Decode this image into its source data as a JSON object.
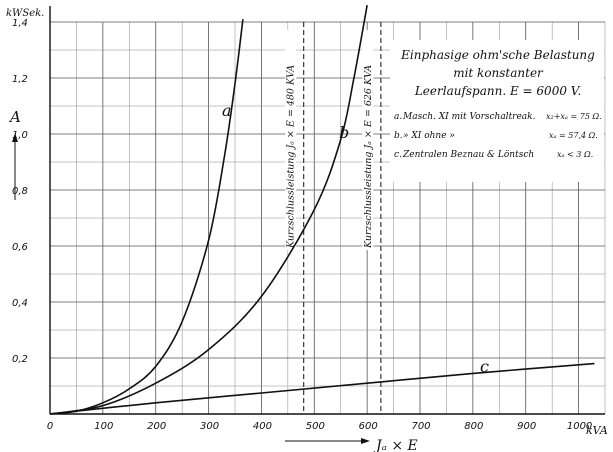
{
  "chart_data": {
    "type": "line",
    "x_unit": "kVA",
    "y_unit": "kWSek.",
    "xlim": [
      0,
      1050
    ],
    "ylim": [
      0,
      1.4
    ],
    "x_ticks": [
      0,
      100,
      200,
      300,
      400,
      500,
      600,
      700,
      800,
      900,
      1000
    ],
    "y_ticks": [
      0.2,
      0.4,
      0.6,
      0.8,
      1.0,
      1.2,
      1.4
    ],
    "x_tick_labels": [
      "0",
      "100",
      "200",
      "300",
      "400",
      "500",
      "600",
      "700",
      "800",
      "900",
      "1000"
    ],
    "y_tick_labels": [
      "0,2",
      "0,4",
      "0,6",
      "0,8",
      "1,0",
      "1,2",
      "1,4"
    ],
    "ylabel": "A",
    "xlabel": "Jₐ × E",
    "grid": true,
    "series": [
      {
        "name": "a",
        "x": [
          0,
          50,
          100,
          150,
          200,
          250,
          300,
          330,
          350,
          365
        ],
        "y": [
          0,
          0.01,
          0.04,
          0.09,
          0.17,
          0.33,
          0.62,
          0.92,
          1.18,
          1.41
        ]
      },
      {
        "name": "b",
        "x": [
          0,
          100,
          200,
          300,
          400,
          500,
          550,
          575,
          600
        ],
        "y": [
          0,
          0.03,
          0.11,
          0.23,
          0.42,
          0.73,
          0.98,
          1.2,
          1.46
        ]
      },
      {
        "name": "c",
        "x": [
          0,
          200,
          400,
          600,
          800,
          1030
        ],
        "y": [
          0,
          0.04,
          0.075,
          0.11,
          0.145,
          0.18
        ]
      }
    ],
    "reference_lines": [
      {
        "x": 480,
        "label": "Kurzschlussleistung Jₐ × E = 480 KVA"
      },
      {
        "x": 626,
        "label": "Kurzschlussleistung Jₐ × E = 626 KVA"
      }
    ],
    "legend": {
      "placement": "top-right",
      "title_lines": [
        "Einphasige ohm'sche Belastung",
        "mit konstanter",
        "Leerlaufspann. E = 6000 V."
      ],
      "entries": [
        {
          "key": "a.",
          "text": "Masch. XI mit Vorschaltreak.",
          "formula": "x₂+xₐ = 75 Ω."
        },
        {
          "key": "b.",
          "text": "»  XI ohne       »",
          "formula": "xₐ = 57,4 Ω."
        },
        {
          "key": "c.",
          "text": "Zentralen Beznau & Löntsch",
          "formula": "xₐ < 3 Ω."
        }
      ]
    }
  }
}
